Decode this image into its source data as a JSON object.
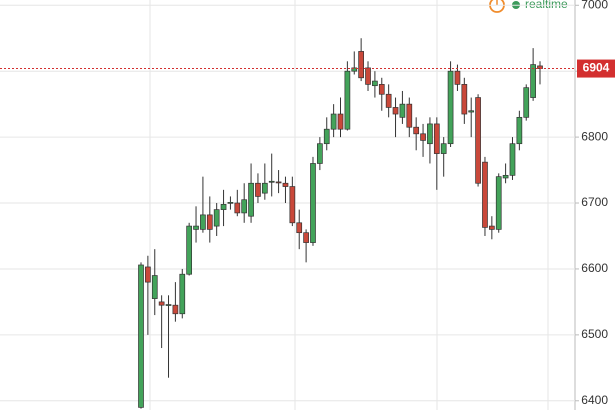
{
  "chart_data": {
    "type": "candlestick",
    "status": "realtime",
    "open": [
      6390,
      6603,
      6555,
      6550,
      6545,
      6545,
      6532,
      6592,
      6660,
      6660,
      6682,
      6665,
      6690,
      6700,
      6700,
      6685,
      6680,
      6730,
      6715,
      6732,
      6732,
      6730,
      6725,
      6670,
      6655,
      6640,
      6760,
      6790,
      6812,
      6835,
      6812,
      6900,
      6930,
      6905,
      6878,
      6880,
      6865,
      6845,
      6830,
      6850,
      6815,
      6805,
      6790,
      6820,
      6775,
      6790,
      6900,
      6880,
      6838,
      6860,
      6762,
      6665,
      6660,
      6738,
      6742,
      6790,
      6830,
      6860,
      6908
    ],
    "high": [
      6610,
      6620,
      6630,
      6560,
      6560,
      6580,
      6600,
      6670,
      6695,
      6740,
      6710,
      6700,
      6720,
      6710,
      6720,
      6730,
      6760,
      6745,
      6760,
      6775,
      6750,
      6740,
      6740,
      6690,
      6660,
      6770,
      6800,
      6830,
      6850,
      6860,
      6915,
      6930,
      6950,
      6915,
      6900,
      6890,
      6880,
      6860,
      6870,
      6860,
      6830,
      6820,
      6830,
      6830,
      6800,
      6915,
      6910,
      6890,
      6860,
      6865,
      6770,
      6680,
      6745,
      6760,
      6800,
      6840,
      6880,
      6935,
      6915
    ],
    "low": [
      6388,
      6500,
      6530,
      6480,
      6435,
      6520,
      6525,
      6590,
      6640,
      6655,
      6640,
      6650,
      6665,
      6690,
      6680,
      6670,
      6670,
      6700,
      6705,
      6710,
      6715,
      6700,
      6665,
      6630,
      6610,
      6635,
      6750,
      6780,
      6800,
      6800,
      6810,
      6895,
      6885,
      6870,
      6860,
      6840,
      6830,
      6800,
      6820,
      6800,
      6780,
      6770,
      6760,
      6720,
      6740,
      6785,
      6870,
      6820,
      6800,
      6725,
      6650,
      6645,
      6655,
      6730,
      6735,
      6780,
      6825,
      6855,
      6880
    ],
    "close": [
      6606,
      6580,
      6590,
      6545,
      6546,
      6532,
      6592,
      6665,
      6665,
      6682,
      6660,
      6690,
      6698,
      6701,
      6685,
      6705,
      6730,
      6710,
      6730,
      6733,
      6731,
      6725,
      6670,
      6655,
      6640,
      6760,
      6790,
      6812,
      6835,
      6812,
      6900,
      6905,
      6890,
      6880,
      6885,
      6865,
      6845,
      6835,
      6850,
      6815,
      6805,
      6795,
      6820,
      6775,
      6790,
      6900,
      6880,
      6835,
      6840,
      6730,
      6663,
      6660,
      6740,
      6742,
      6790,
      6830,
      6875,
      6910,
      6904
    ],
    "up_color": "#43a35a",
    "down_color": "#c9483a",
    "last_price": 6904,
    "last_price_color": "#d32f2f",
    "ylim": [
      6386,
      7008
    ],
    "yticks": [
      6400,
      6500,
      6600,
      6700,
      6800,
      6900,
      7000
    ],
    "grid": true
  }
}
